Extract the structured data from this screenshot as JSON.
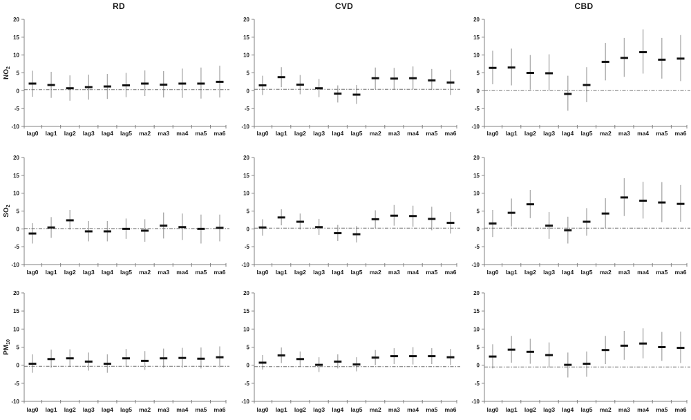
{
  "figure": {
    "column_titles": [
      "RD",
      "CVD",
      "CBD"
    ],
    "row_labels": [
      {
        "main": "NO",
        "sub": "2"
      },
      {
        "main": "SO",
        "sub": "2"
      },
      {
        "main": "PM",
        "sub": "10"
      }
    ],
    "colors": {
      "axis": "#808080",
      "error_bar": "#adadad",
      "estimate": "#121212",
      "reference_line": "#6f6f6f",
      "text": "#1a1a1a"
    }
  },
  "chart_data": {
    "type": "errorbar",
    "layout": "3x3 grid, columns = outcomes, rows = pollutants",
    "categories": [
      "lag0",
      "lag1",
      "lag2",
      "lag3",
      "lag4",
      "lag5",
      "ma2",
      "ma3",
      "ma4",
      "ma5",
      "ma6"
    ],
    "ylim": [
      -10,
      20
    ],
    "yticks": [
      -10,
      -5,
      0,
      5,
      10,
      15,
      20
    ],
    "grid": false,
    "legend": false,
    "panels": [
      {
        "outcome": "RD",
        "pollutant": "NO2",
        "ref_line": 0.3,
        "est": [
          2.0,
          1.6,
          0.7,
          1.0,
          1.2,
          1.5,
          2.0,
          1.7,
          2.0,
          2.0,
          2.5
        ],
        "lo": [
          -1.7,
          -2.0,
          -2.8,
          -2.5,
          -2.3,
          -1.8,
          -1.5,
          -1.9,
          -2.0,
          -2.2,
          -1.9
        ],
        "hi": [
          5.6,
          5.3,
          4.3,
          4.5,
          4.7,
          5.0,
          5.7,
          5.5,
          6.2,
          6.5,
          7.0
        ]
      },
      {
        "outcome": "CVD",
        "pollutant": "NO2",
        "ref_line": 0.4,
        "est": [
          1.5,
          3.8,
          1.7,
          0.7,
          -0.8,
          -1.1,
          3.5,
          3.4,
          3.5,
          2.9,
          2.3
        ],
        "lo": [
          -1.2,
          1.0,
          -1.0,
          -1.8,
          -3.3,
          -3.7,
          0.4,
          0.3,
          0.4,
          0.2,
          -1.2
        ],
        "hi": [
          4.2,
          6.6,
          4.4,
          3.3,
          1.5,
          1.6,
          6.5,
          6.4,
          6.8,
          6.1,
          5.9
        ]
      },
      {
        "outcome": "CBD",
        "pollutant": "NO2",
        "ref_line": 0.1,
        "est": [
          6.4,
          6.5,
          5.0,
          4.9,
          -0.9,
          1.6,
          8.1,
          9.2,
          10.8,
          8.7,
          9.0
        ],
        "lo": [
          1.8,
          1.5,
          0.3,
          0.2,
          -5.6,
          -3.2,
          2.9,
          3.9,
          4.8,
          3.4,
          2.7
        ],
        "hi": [
          11.2,
          11.8,
          10.0,
          10.2,
          4.2,
          6.6,
          13.4,
          14.8,
          17.2,
          14.8,
          15.6
        ]
      },
      {
        "outcome": "RD",
        "pollutant": "SO2",
        "ref_line": 0.1,
        "est": [
          -1.3,
          0.4,
          2.4,
          -0.7,
          -0.7,
          0.0,
          -0.5,
          0.9,
          0.5,
          0.0,
          0.3
        ],
        "lo": [
          -4.1,
          -2.5,
          -0.2,
          -3.5,
          -3.5,
          -2.8,
          -3.6,
          -2.7,
          -3.1,
          -4.1,
          -3.5
        ],
        "hi": [
          1.6,
          3.3,
          5.3,
          2.2,
          2.2,
          2.9,
          2.7,
          4.6,
          4.3,
          4.0,
          4.0
        ]
      },
      {
        "outcome": "CVD",
        "pollutant": "SO2",
        "ref_line": 0.2,
        "est": [
          0.4,
          3.2,
          2.0,
          0.5,
          -1.2,
          -1.5,
          2.7,
          3.7,
          3.6,
          2.8,
          1.7
        ],
        "lo": [
          -1.9,
          1.0,
          -0.2,
          -1.7,
          -3.4,
          -3.8,
          0.2,
          0.9,
          0.6,
          -0.4,
          -1.3
        ],
        "hi": [
          2.7,
          5.5,
          4.3,
          2.8,
          1.1,
          0.8,
          5.2,
          6.7,
          6.5,
          6.2,
          4.7
        ]
      },
      {
        "outcome": "CBD",
        "pollutant": "SO2",
        "ref_line": 0.2,
        "est": [
          1.5,
          4.5,
          6.9,
          0.9,
          -0.4,
          2.0,
          4.3,
          8.8,
          7.9,
          7.4,
          7.0
        ],
        "lo": [
          -2.3,
          0.7,
          3.0,
          -2.8,
          -4.1,
          -1.9,
          0.2,
          3.6,
          2.9,
          1.9,
          2.0
        ],
        "hi": [
          5.3,
          8.5,
          10.9,
          4.7,
          3.4,
          5.8,
          8.6,
          14.2,
          13.2,
          13.1,
          12.3
        ]
      },
      {
        "outcome": "RD",
        "pollutant": "PM10",
        "ref_line": -0.3,
        "est": [
          0.4,
          1.7,
          1.9,
          1.0,
          0.4,
          1.9,
          1.2,
          1.9,
          2.0,
          1.8,
          2.2
        ],
        "lo": [
          -2.1,
          -0.7,
          -0.5,
          -1.5,
          -2.1,
          -0.5,
          -1.3,
          -0.7,
          -0.7,
          -0.9,
          -0.6
        ],
        "hi": [
          3.0,
          4.3,
          4.4,
          3.5,
          3.0,
          4.5,
          3.9,
          4.6,
          4.8,
          4.9,
          5.2
        ]
      },
      {
        "outcome": "CVD",
        "pollutant": "PM10",
        "ref_line": -0.4,
        "est": [
          0.7,
          2.7,
          1.7,
          0.1,
          1.0,
          0.2,
          2.1,
          2.5,
          2.5,
          2.5,
          2.2
        ],
        "lo": [
          -1.2,
          0.6,
          -0.3,
          -1.9,
          -0.9,
          -1.7,
          0.0,
          0.3,
          0.2,
          0.3,
          0.0
        ],
        "hi": [
          2.8,
          4.9,
          3.8,
          2.2,
          3.0,
          2.2,
          4.2,
          4.7,
          5.0,
          4.7,
          4.5
        ]
      },
      {
        "outcome": "CBD",
        "pollutant": "PM10",
        "ref_line": -0.5,
        "est": [
          2.4,
          4.3,
          3.7,
          2.8,
          0.1,
          0.4,
          4.2,
          5.4,
          6.0,
          5.0,
          4.8
        ],
        "lo": [
          -0.9,
          0.7,
          0.4,
          -0.6,
          -3.4,
          -3.2,
          0.3,
          1.5,
          1.9,
          1.2,
          0.6
        ],
        "hi": [
          5.8,
          8.1,
          7.3,
          6.3,
          3.5,
          3.8,
          8.1,
          9.5,
          10.2,
          9.2,
          9.3
        ]
      }
    ]
  }
}
